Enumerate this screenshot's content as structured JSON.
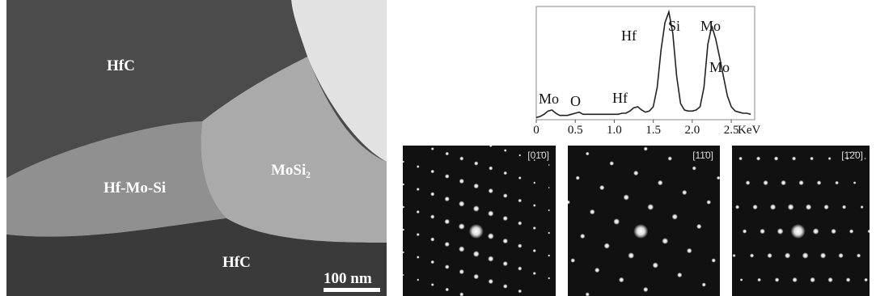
{
  "image": {
    "labels": [
      "HfC",
      "Hf-Mo-Si",
      "MoSi₂",
      "HfC"
    ],
    "scale_bar": "100 nm"
  },
  "spectrum": {
    "type": "line",
    "x_unit": "KeV",
    "xlim": [
      0,
      2.8
    ],
    "ylim": [
      0,
      105
    ],
    "xticks": [
      0,
      0.5,
      {
        "value": 1,
        "label": "1.0"
      },
      1.5,
      {
        "value": 2,
        "label": "2.0"
      },
      2.5
    ],
    "x": [
      0,
      0.05,
      0.1,
      0.15,
      0.2,
      0.25,
      0.3,
      0.35,
      0.4,
      0.45,
      0.5,
      0.55,
      0.6,
      0.65,
      0.7,
      0.75,
      0.8,
      0.85,
      0.9,
      0.95,
      1,
      1.05,
      1.1,
      1.15,
      1.2,
      1.25,
      1.3,
      1.35,
      1.4,
      1.45,
      1.5,
      1.55,
      1.6,
      1.65,
      1.7,
      1.75,
      1.8,
      1.85,
      1.9,
      1.95,
      2,
      2.05,
      2.1,
      2.15,
      2.2,
      2.25,
      2.3,
      2.35,
      2.4,
      2.45,
      2.5,
      2.55,
      2.6,
      2.65,
      2.7,
      2.75
    ],
    "values": [
      2,
      3,
      5,
      8,
      9,
      6,
      4,
      4,
      4,
      5,
      6,
      7,
      5,
      5,
      5,
      5,
      5,
      5,
      5,
      5,
      5,
      5,
      6,
      6,
      8,
      11,
      12,
      9,
      7,
      8,
      12,
      30,
      65,
      90,
      100,
      80,
      40,
      15,
      9,
      8,
      8,
      9,
      12,
      30,
      70,
      87,
      75,
      58,
      40,
      22,
      12,
      8,
      7,
      6,
      6,
      5
    ],
    "peak_labels": [
      "Mo",
      "O",
      "Hf",
      "Hf",
      "Si",
      "Mo",
      "Mo"
    ]
  },
  "patterns": [
    {
      "zone_axis": "[01̄0]"
    },
    {
      "zone_axis": "[11̄0]"
    },
    {
      "zone_axis": "[1̄2̄0]"
    }
  ]
}
